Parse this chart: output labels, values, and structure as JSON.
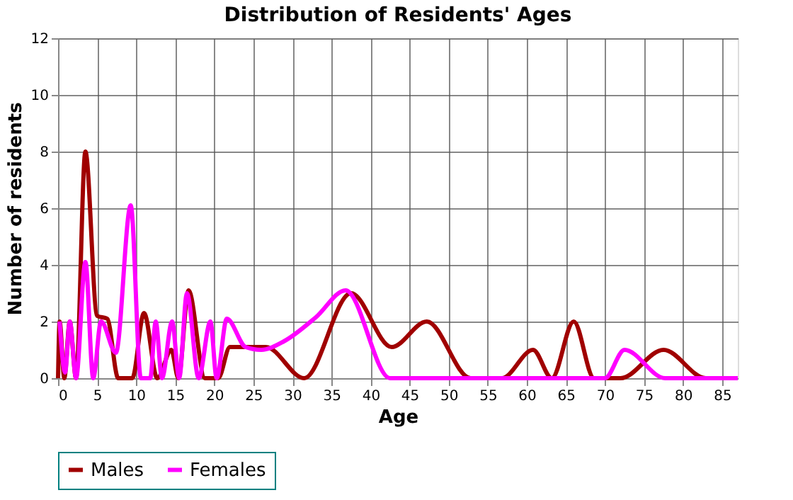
{
  "chart_data": {
    "type": "line",
    "title": "Distribution of Residents' Ages",
    "xlabel": "Age",
    "ylabel": "Number of residents",
    "xlim": [
      0,
      87
    ],
    "xticks": [
      0,
      5,
      10,
      15,
      20,
      25,
      30,
      35,
      40,
      45,
      50,
      55,
      60,
      65,
      70,
      75,
      80,
      85
    ],
    "ylim": [
      0,
      12
    ],
    "yticks": [
      0,
      2,
      4,
      6,
      8,
      10,
      12
    ],
    "grid": true,
    "legend": "bottom",
    "marker": "none",
    "line_style": "solid",
    "series": [
      {
        "name": "Males",
        "color": "#a00000",
        "x": [
          0,
          0.2,
          0.8,
          1.5,
          2.3,
          3.5,
          5.0,
          6.3,
          7.7,
          9.5,
          11,
          12.7,
          14.5,
          15.4,
          16.7,
          18.8,
          20.5,
          22,
          26.6,
          31.5,
          37.5,
          42.7,
          47.2,
          52.8,
          56.8,
          60.8,
          63.2,
          66,
          68.6,
          72,
          77.5,
          82.9,
          87
        ],
        "values": [
          0,
          2,
          0,
          2,
          0,
          8,
          2.2,
          2.1,
          0,
          0,
          2.3,
          0,
          1,
          0,
          3.1,
          0,
          0,
          1.1,
          1.1,
          0,
          3,
          1.1,
          2,
          0,
          0,
          1,
          0,
          2,
          0,
          0,
          1,
          0,
          0
        ]
      },
      {
        "name": "Females",
        "color": "#ff00ff",
        "x": [
          0.2,
          0.9,
          1.5,
          2.3,
          3.5,
          4.5,
          5.5,
          7.4,
          9.3,
          10.6,
          11.8,
          12.5,
          13.3,
          14.6,
          15.5,
          16.5,
          18,
          19.5,
          20.3,
          21.6,
          24,
          26,
          28.9,
          33,
          36.8,
          42.5,
          70,
          72.5,
          77.7,
          87
        ],
        "values": [
          2,
          0.2,
          2,
          0,
          4.1,
          0,
          2,
          0.9,
          6.1,
          0,
          0,
          2,
          0,
          2,
          0,
          3,
          0,
          2,
          0,
          2.1,
          1.1,
          1,
          1.3,
          2.15,
          3.1,
          0,
          0,
          1,
          0,
          0
        ]
      }
    ]
  }
}
